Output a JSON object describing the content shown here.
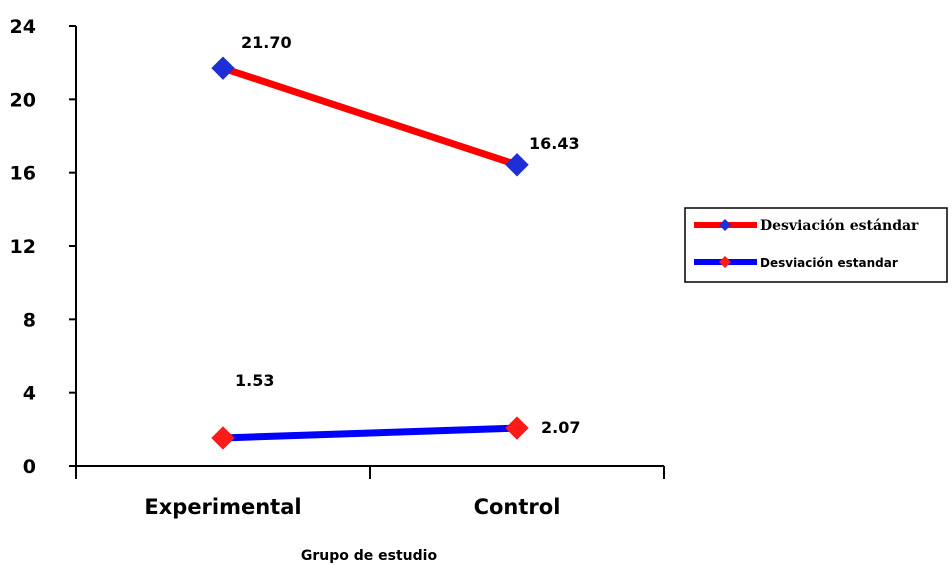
{
  "chart_data": {
    "type": "line",
    "categories": [
      "Experimental",
      "Control"
    ],
    "xlabel": "Grupo de estudio",
    "ylabel": "",
    "ylim": [
      0,
      24
    ],
    "yticks": [
      "0",
      "4",
      "8",
      "12",
      "16",
      "20",
      "24"
    ],
    "grid": false,
    "legend_position": "right",
    "series": [
      {
        "name": "Desviación estándar",
        "values": [
          21.7,
          16.43
        ],
        "labels": [
          "21.70",
          "16.43"
        ],
        "line_color": "#ff0000",
        "marker_color": "#1f2fd6"
      },
      {
        "name": "Desviación estandar",
        "values": [
          1.53,
          2.07
        ],
        "labels": [
          "1.53",
          "2.07"
        ],
        "line_color": "#0000ff",
        "marker_color": "#ff1a1a"
      }
    ]
  }
}
